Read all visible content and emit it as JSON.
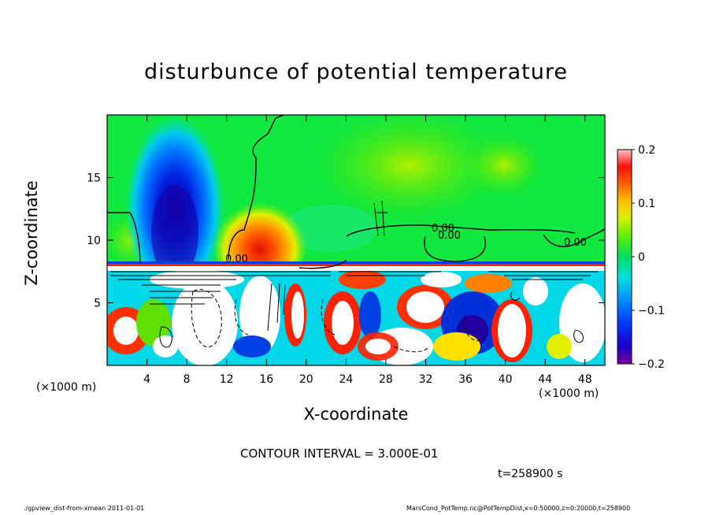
{
  "chart_data": {
    "type": "heatmap",
    "title": "disturbunce of potential temperature",
    "xlabel": "X-coordinate",
    "ylabel": "Z-coordinate",
    "x_unit": "(×1000 m)",
    "xlim": [
      0,
      50
    ],
    "ylim": [
      0,
      20
    ],
    "x_ticks": [
      4,
      8,
      12,
      16,
      20,
      24,
      28,
      32,
      36,
      40,
      44,
      48
    ],
    "y_ticks": [
      5,
      10,
      15
    ],
    "colorbar": {
      "range": [
        -0.2,
        0.2
      ],
      "ticks": [
        0.2,
        0.1,
        0,
        -0.1,
        -0.2
      ],
      "tick_labels": [
        "0.2",
        "0.1",
        "0",
        "−0.1",
        "−0.2"
      ]
    },
    "contour_interval": "CONTOUR INTERVAL = 3.000E-01",
    "contour_labels": [
      "0.00",
      "0.00",
      "0.00",
      "0.00"
    ],
    "time": "t=258900 s",
    "regions": [
      {
        "name": "negative plume",
        "x": [
          4.5,
          9
        ],
        "z": [
          8,
          18
        ],
        "value": -0.2
      },
      {
        "name": "positive plume",
        "x": [
          13,
          19
        ],
        "z": [
          8,
          13
        ],
        "value": 0.15
      },
      {
        "name": "positive patch",
        "x": [
          38,
          44
        ],
        "z": [
          14,
          17
        ],
        "value": 0.05
      }
    ]
  },
  "footer": {
    "left": "./gpview_dist-from-xmean   2011-01-01",
    "right": "MarsCond_PotTemp.nc@PotTempDist,x=0:50000,z=0:20000,t=258900"
  },
  "colors": {
    "background": "#00ee33",
    "negative": "#1020c0",
    "positive": "#ff2000"
  }
}
